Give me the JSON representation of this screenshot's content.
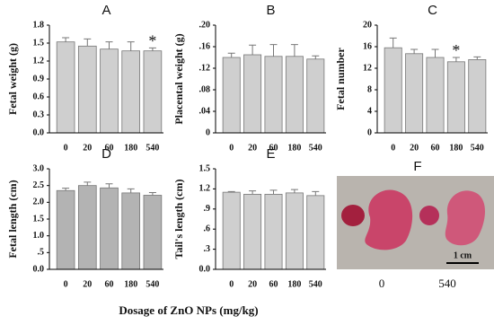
{
  "chart_data": [
    {
      "type": "bar",
      "title": "A",
      "y_label": "Fetal weight (g)",
      "categories": [
        "0",
        "20",
        "60",
        "180",
        "540"
      ],
      "values": [
        1.52,
        1.45,
        1.4,
        1.37,
        1.37
      ],
      "errors": [
        0.07,
        0.12,
        0.12,
        0.15,
        0.05
      ],
      "color": "#cfcfcf",
      "ylim": [
        0,
        1.8
      ],
      "yticks": [
        {
          "value": 0,
          "label": "0.0"
        },
        0.3,
        0.6,
        0.9,
        1.2,
        1.5,
        1.8
      ],
      "annotations": [
        {
          "text": "*",
          "x": "540"
        }
      ]
    },
    {
      "type": "bar",
      "title": "B",
      "y_label": "Placental weight (g)",
      "categories": [
        "0",
        "20",
        "60",
        "180",
        "540"
      ],
      "values": [
        0.14,
        0.145,
        0.142,
        0.142,
        0.137
      ],
      "errors": [
        0.008,
        0.018,
        0.022,
        0.022,
        0.006
      ],
      "color": "#cfcfcf",
      "ylim": [
        0,
        0.2
      ],
      "yticks": [
        0,
        {
          "value": 0.04,
          "label": ".04"
        },
        {
          "value": 0.08,
          "label": ".08"
        },
        {
          "value": 0.12,
          "label": ".12"
        },
        {
          "value": 0.16,
          "label": ".16"
        },
        {
          "value": 0.2,
          "label": ".20"
        }
      ]
    },
    {
      "type": "bar",
      "title": "C",
      "y_label": "Fetal number",
      "categories": [
        "0",
        "20",
        "60",
        "180",
        "540"
      ],
      "values": [
        15.8,
        14.7,
        14.0,
        13.2,
        13.6
      ],
      "errors": [
        1.8,
        0.8,
        1.5,
        0.8,
        0.5
      ],
      "color": "#cfcfcf",
      "ylim": [
        0,
        20
      ],
      "yticks": [
        0,
        4,
        8,
        12,
        16,
        20
      ],
      "annotations": [
        {
          "text": "*",
          "x": "180"
        }
      ]
    },
    {
      "type": "bar",
      "title": "D",
      "y_label": "Fetal  length (cm)",
      "categories": [
        "0",
        "20",
        "60",
        "180",
        "540"
      ],
      "values": [
        2.35,
        2.5,
        2.43,
        2.28,
        2.21
      ],
      "errors": [
        0.07,
        0.1,
        0.12,
        0.12,
        0.08
      ],
      "color": "#b3b3b3",
      "ylim": [
        0,
        3
      ],
      "yticks": [
        {
          "value": 0,
          "label": "0.0"
        },
        {
          "value": 0.5,
          "label": ".5"
        },
        {
          "value": 1,
          "label": "1.0"
        },
        1.5,
        {
          "value": 2,
          "label": "2.0"
        },
        2.5,
        {
          "value": 3,
          "label": "3.0"
        }
      ]
    },
    {
      "type": "bar",
      "title": "E",
      "y_label": "Tail's length (cm)",
      "categories": [
        "0",
        "20",
        "60",
        "180",
        "540"
      ],
      "values": [
        1.15,
        1.12,
        1.12,
        1.14,
        1.1
      ],
      "errors": [
        0.01,
        0.05,
        0.06,
        0.05,
        0.06
      ],
      "color": "#cfcfcf",
      "ylim": [
        0,
        1.5
      ],
      "yticks": [
        {
          "value": 0,
          "label": "0.0"
        },
        {
          "value": 0.3,
          "label": ".3"
        },
        {
          "value": 0.6,
          "label": ".6"
        },
        {
          "value": 0.9,
          "label": ".9"
        },
        1.2,
        1.5
      ]
    }
  ],
  "photo": {
    "label": "F",
    "captions": [
      "0",
      "540"
    ],
    "scale_bar": "1 cm"
  },
  "x_axis_label": "Dosage of  ZnO NPs (mg/kg)"
}
